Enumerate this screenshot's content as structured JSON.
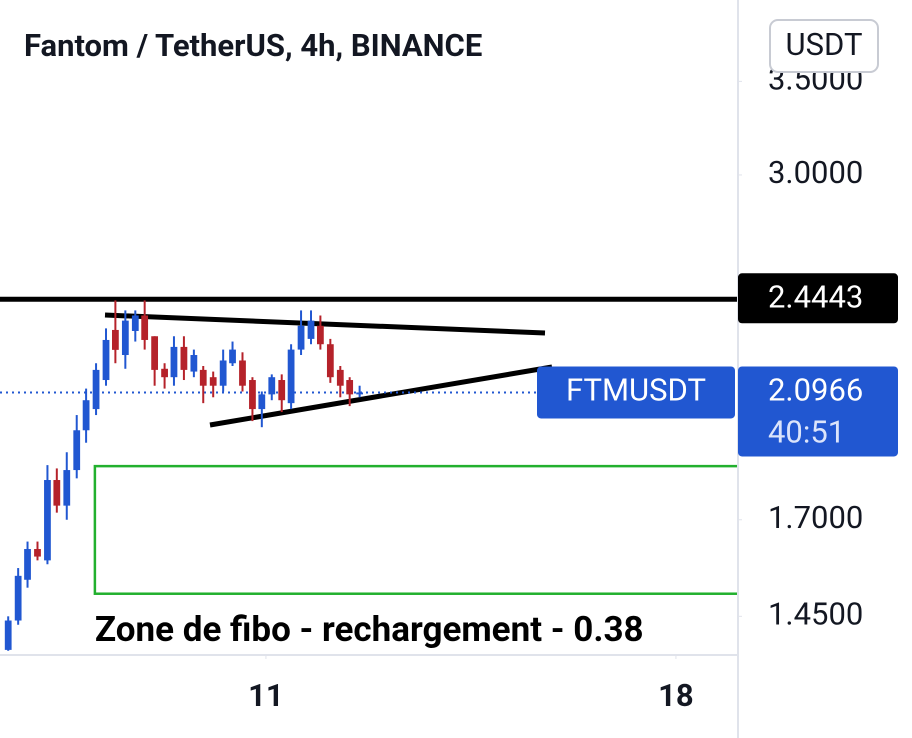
{
  "chart_data": {
    "type": "candlestick",
    "title": "Fantom / TetherUS, 4h, BINANCE",
    "currency": "USDT",
    "symbol": "FTMUSDT",
    "countdown": "40:51",
    "log_scale": true,
    "grid": false,
    "up_color": "#2157d1",
    "down_color": "#b5222a",
    "x": [
      6.6,
      6.77,
      6.93,
      7.1,
      7.27,
      7.43,
      7.6,
      7.77,
      7.93,
      8.1,
      8.27,
      8.43,
      8.6,
      8.77,
      8.93,
      9.1,
      9.27,
      9.43,
      9.6,
      9.77,
      9.93,
      10.1,
      10.27,
      10.43,
      10.6,
      10.77,
      10.93,
      11.1,
      11.27,
      11.43,
      11.6,
      11.77,
      11.93,
      12.1,
      12.27,
      12.43,
      12.6
    ],
    "open": [
      1.372,
      1.44,
      1.54,
      1.62,
      1.59,
      1.815,
      1.74,
      1.845,
      1.97,
      2.04,
      2.14,
      2.324,
      2.23,
      2.32,
      2.38,
      2.3,
      2.18,
      2.15,
      2.26,
      2.17,
      2.176,
      2.15,
      2.12,
      2.2,
      2.21,
      2.14,
      2.04,
      2.09,
      2.14,
      2.06,
      2.25,
      2.29,
      2.34,
      2.27,
      2.176,
      2.14,
      2.09
    ],
    "high": [
      1.45,
      1.57,
      1.64,
      1.64,
      1.86,
      1.85,
      1.9,
      2.02,
      2.11,
      2.2,
      2.33,
      2.44,
      2.4,
      2.4,
      2.44,
      2.3,
      2.2,
      2.3,
      2.3,
      2.25,
      2.19,
      2.17,
      2.25,
      2.28,
      2.24,
      2.15,
      2.1,
      2.16,
      2.16,
      2.27,
      2.4,
      2.4,
      2.38,
      2.29,
      2.19,
      2.15,
      2.12
    ],
    "low": [
      1.37,
      1.43,
      1.52,
      1.59,
      1.58,
      1.72,
      1.7,
      1.82,
      1.93,
      2.02,
      2.12,
      2.2,
      2.18,
      2.28,
      2.25,
      2.12,
      2.11,
      2.12,
      2.14,
      2.15,
      2.06,
      2.08,
      2.1,
      2.19,
      2.1,
      2.0,
      1.98,
      2.07,
      2.03,
      2.04,
      2.23,
      2.27,
      2.25,
      2.13,
      2.08,
      2.05,
      2.08
    ],
    "close": [
      1.44,
      1.55,
      1.62,
      1.6,
      1.815,
      1.74,
      1.845,
      1.97,
      2.07,
      2.176,
      2.286,
      2.249,
      2.36,
      2.38,
      2.286,
      2.176,
      2.15,
      2.26,
      2.176,
      2.23,
      2.12,
      2.12,
      2.21,
      2.25,
      2.12,
      2.04,
      2.09,
      2.15,
      2.07,
      2.25,
      2.34,
      2.36,
      2.27,
      2.15,
      2.12,
      2.09,
      2.0966
    ],
    "xlim": [
      6.46,
      19.06
    ],
    "xticks": [
      11,
      18
    ],
    "ylim": [
      1.3605,
      4.002
    ],
    "yticks": [
      {
        "value": 3.5,
        "label": "3.5000"
      },
      {
        "value": 3.0,
        "label": "3.0000"
      },
      {
        "value": 1.7,
        "label": "1.7000"
      },
      {
        "value": 1.45,
        "label": "1.4500"
      }
    ],
    "level": 2.4443,
    "zone": {
      "x_start": 8.08,
      "high": 1.857,
      "low": 1.505,
      "label": "Zone de fibo - rechargement - 0.38"
    }
  }
}
